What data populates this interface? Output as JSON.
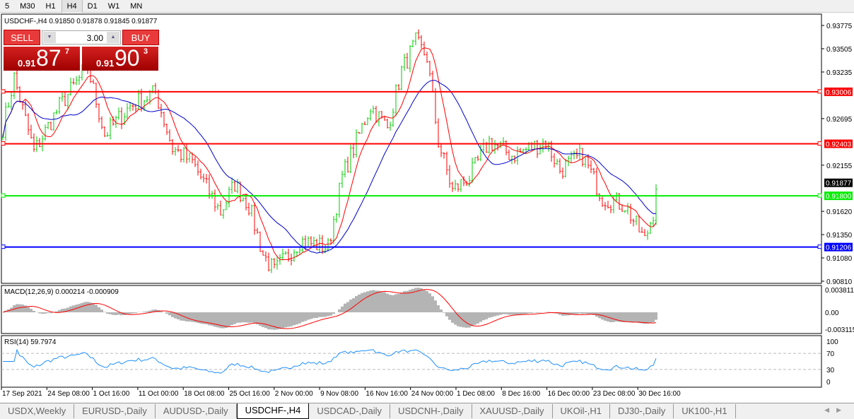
{
  "toolbar": {
    "timeframes": [
      {
        "label": "5"
      },
      {
        "label": "M30"
      },
      {
        "label": "H1"
      },
      {
        "label": "H4",
        "active": true
      },
      {
        "label": "D1"
      },
      {
        "label": "W1"
      },
      {
        "label": "MN"
      }
    ]
  },
  "chart": {
    "symbol_line": "USDCHF-,H4  0.91850 0.91878 0.91845 0.91877",
    "trade_panel": {
      "sell_label": "SELL",
      "buy_label": "BUY",
      "lot": "3.00",
      "sell_prefix": "0.91",
      "sell_big": "87",
      "sell_sup": "7",
      "buy_prefix": "0.91",
      "buy_big": "90",
      "buy_sup": "3"
    },
    "price_axis": [
      "0.93775",
      "0.93505",
      "0.93235",
      "0.92695",
      "0.92155",
      "0.91620",
      "0.91350",
      "0.91080",
      "0.90810"
    ],
    "hlines": [
      {
        "price": 0.93006,
        "label": "0.93006",
        "color": "#ff0000"
      },
      {
        "price": 0.92403,
        "label": "0.92403",
        "color": "#ff0000"
      },
      {
        "price": 0.918,
        "label": "0.91800",
        "color": "#00ee00"
      },
      {
        "price": 0.91206,
        "label": "0.91206",
        "color": "#0000ff"
      }
    ],
    "current_price": {
      "price": 0.91877,
      "label": "0.91877"
    },
    "colors": {
      "bull": "#00cc00",
      "bear": "#ff0000",
      "ma_fast": "#ff0000",
      "ma_slow": "#0000cc",
      "macd_hist": "#b4b4b4",
      "macd_signal": "#ff0000",
      "rsi": "#1e90ff"
    },
    "macd": {
      "label": "MACD(12,26,9) 0.000214 -0.000909",
      "axis": [
        "0.003811",
        "0.00",
        "-0.003115"
      ]
    },
    "rsi": {
      "label": "RSI(14) 59.7974",
      "axis": [
        "100",
        "70",
        "30",
        "0"
      ]
    },
    "time_axis": [
      "17 Sep 2021",
      "24 Sep 08:00",
      "1 Oct 16:00",
      "11 Oct 00:00",
      "18 Oct 08:00",
      "25 Oct 16:00",
      "2 Nov 00:00",
      "9 Nov 08:00",
      "16 Nov 16:00",
      "24 Nov 00:00",
      "1 Dec 08:00",
      "8 Dec 16:00",
      "16 Dec 00:00",
      "23 Dec 08:00",
      "30 Dec 16:00"
    ]
  },
  "chart_data": {
    "type": "candlestick",
    "symbol": "USDCHF-",
    "timeframe": "H4",
    "ylim": [
      0.9081,
      0.93775
    ],
    "approx_close_path": [
      [
        0,
        0.9259
      ],
      [
        4,
        0.9317
      ],
      [
        11,
        0.9231
      ],
      [
        20,
        0.9284
      ],
      [
        30,
        0.9329
      ],
      [
        36,
        0.9251
      ],
      [
        45,
        0.9284
      ],
      [
        54,
        0.93
      ],
      [
        60,
        0.9235
      ],
      [
        67,
        0.9219
      ],
      [
        77,
        0.9161
      ],
      [
        82,
        0.9194
      ],
      [
        87,
        0.9169
      ],
      [
        92,
        0.9112
      ],
      [
        96,
        0.9092
      ],
      [
        105,
        0.9128
      ],
      [
        115,
        0.912
      ],
      [
        120,
        0.9202
      ],
      [
        130,
        0.9284
      ],
      [
        136,
        0.9259
      ],
      [
        141,
        0.9325
      ],
      [
        146,
        0.9358
      ],
      [
        150,
        0.9341
      ],
      [
        154,
        0.9243
      ],
      [
        159,
        0.9186
      ],
      [
        165,
        0.9202
      ],
      [
        172,
        0.9243
      ],
      [
        180,
        0.9227
      ],
      [
        192,
        0.9243
      ],
      [
        197,
        0.921
      ],
      [
        205,
        0.9227
      ],
      [
        212,
        0.9178
      ],
      [
        220,
        0.9169
      ],
      [
        227,
        0.9128
      ],
      [
        230,
        0.9161
      ],
      [
        231,
        0.91877
      ]
    ]
  }
}
